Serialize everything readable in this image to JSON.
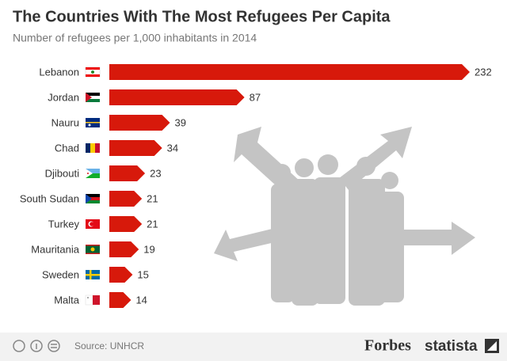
{
  "chart_data": {
    "type": "bar",
    "orientation": "horizontal",
    "title": "The Countries With The Most Refugees Per Capita",
    "subtitle": "Number of refugees per 1,000 inhabitants in 2014",
    "categories": [
      "Lebanon",
      "Jordan",
      "Nauru",
      "Chad",
      "Djibouti",
      "South Sudan",
      "Turkey",
      "Mauritania",
      "Sweden",
      "Malta"
    ],
    "values": [
      232,
      87,
      39,
      34,
      23,
      21,
      21,
      19,
      15,
      14
    ],
    "color": "#d7190b",
    "source": "Source: UNHCR",
    "logos": [
      "Forbes",
      "statista"
    ]
  }
}
